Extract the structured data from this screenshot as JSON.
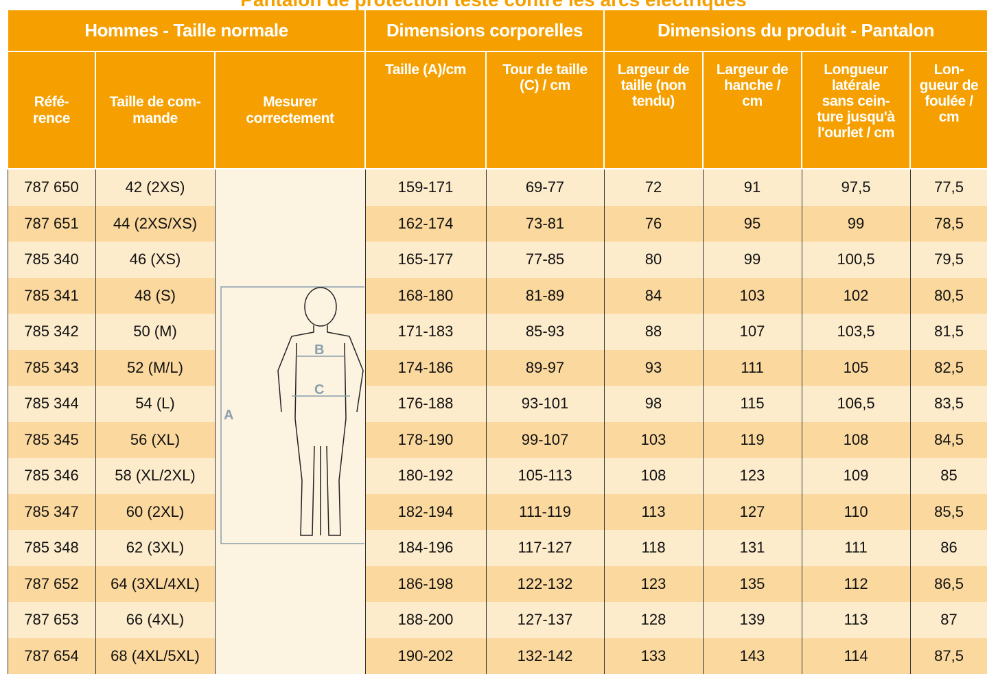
{
  "title": "Pantalon de protection testé contre les arcs électriques",
  "groups": [
    "Hommes - Taille normale",
    "Dimensions corporelles",
    "Dimensions du produit - Pantalon"
  ],
  "columns": [
    "Réfé-\nrence",
    "Taille de com-\nmande",
    "Mesurer\ncorrectement",
    "Taille (A)/cm",
    "Tour de taille\n(C) / cm",
    "Largeur de\ntaille (non\ntendu)",
    "Largeur de\nhanche /\ncm",
    "Longueur\nlatérale\nsans cein-\nture jusqu'à\nl'ourlet / cm",
    "Lon-\ngueur de\nfoulée /\ncm"
  ],
  "figure_labels": [
    "A",
    "B",
    "C"
  ],
  "rows": [
    [
      "787 650",
      "42 (2XS)",
      "159-171",
      "69-77",
      "72",
      "91",
      "97,5",
      "77,5"
    ],
    [
      "787 651",
      "44 (2XS/XS)",
      "162-174",
      "73-81",
      "76",
      "95",
      "99",
      "78,5"
    ],
    [
      "785 340",
      "46 (XS)",
      "165-177",
      "77-85",
      "80",
      "99",
      "100,5",
      "79,5"
    ],
    [
      "785 341",
      "48 (S)",
      "168-180",
      "81-89",
      "84",
      "103",
      "102",
      "80,5"
    ],
    [
      "785 342",
      "50 (M)",
      "171-183",
      "85-93",
      "88",
      "107",
      "103,5",
      "81,5"
    ],
    [
      "785 343",
      "52 (M/L)",
      "174-186",
      "89-97",
      "93",
      "111",
      "105",
      "82,5"
    ],
    [
      "785 344",
      "54 (L)",
      "176-188",
      "93-101",
      "98",
      "115",
      "106,5",
      "83,5"
    ],
    [
      "785 345",
      "56 (XL)",
      "178-190",
      "99-107",
      "103",
      "119",
      "108",
      "84,5"
    ],
    [
      "785 346",
      "58 (XL/2XL)",
      "180-192",
      "105-113",
      "108",
      "123",
      "109",
      "85"
    ],
    [
      "785 347",
      "60 (2XL)",
      "182-194",
      "111-119",
      "113",
      "127",
      "110",
      "85,5"
    ],
    [
      "785 348",
      "62 (3XL)",
      "184-196",
      "117-127",
      "118",
      "131",
      "111",
      "86"
    ],
    [
      "787 652",
      "64 (3XL/4XL)",
      "186-198",
      "122-132",
      "123",
      "135",
      "112",
      "86,5"
    ],
    [
      "787 653",
      "66 (4XL)",
      "188-200",
      "127-137",
      "128",
      "139",
      "113",
      "87"
    ],
    [
      "787 654",
      "68 (4XL/5XL)",
      "190-202",
      "132-142",
      "133",
      "143",
      "114",
      "87,5"
    ]
  ]
}
